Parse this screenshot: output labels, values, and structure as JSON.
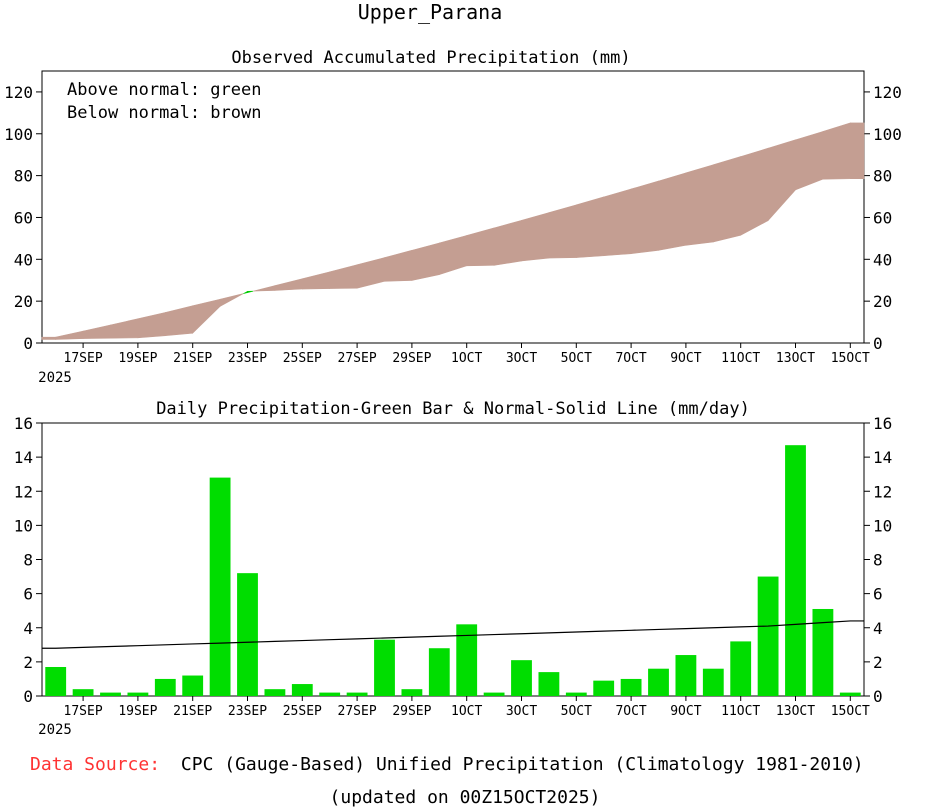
{
  "page_title": "Upper_Parana",
  "chart_data": [
    {
      "type": "area",
      "title": "Observed Accumulated Precipitation (mm)",
      "annotations": [
        "Above normal: green",
        "Below normal: brown"
      ],
      "colors": {
        "above_normal": "#00cc00",
        "below_normal": "#c49e92"
      },
      "x_ticks": [
        "17SEP",
        "19SEP",
        "21SEP",
        "23SEP",
        "25SEP",
        "27SEP",
        "29SEP",
        "1OCT",
        "3OCT",
        "5OCT",
        "7OCT",
        "9OCT",
        "11OCT",
        "13OCT",
        "15OCT"
      ],
      "year_label": "2025",
      "ylim": [
        0,
        130
      ],
      "yticks": [
        0,
        20,
        40,
        60,
        80,
        100,
        120
      ],
      "x": [
        "16SEP",
        "17SEP",
        "18SEP",
        "19SEP",
        "20SEP",
        "21SEP",
        "22SEP",
        "23SEP",
        "24SEP",
        "25SEP",
        "26SEP",
        "27SEP",
        "28SEP",
        "29SEP",
        "30SEP",
        "1OCT",
        "2OCT",
        "3OCT",
        "4OCT",
        "5OCT",
        "6OCT",
        "7OCT",
        "8OCT",
        "9OCT",
        "10OCT",
        "11OCT",
        "12OCT",
        "13OCT",
        "14OCT",
        "15OCT"
      ],
      "series": [
        {
          "name": "Observed",
          "values": [
            1.7,
            2.1,
            2.3,
            2.5,
            3.5,
            4.7,
            17.5,
            24.7,
            25.1,
            25.8,
            26.0,
            26.2,
            29.5,
            29.9,
            32.7,
            36.9,
            37.1,
            39.2,
            40.6,
            40.8,
            41.7,
            42.7,
            44.3,
            46.7,
            48.3,
            51.5,
            58.5,
            73.2,
            78.3,
            78.5
          ]
        },
        {
          "name": "Normal",
          "values": [
            2.8,
            5.7,
            8.6,
            11.6,
            14.6,
            17.8,
            20.9,
            24.1,
            27.4,
            30.7,
            34.0,
            37.4,
            40.8,
            44.3,
            47.8,
            51.4,
            55.0,
            58.6,
            62.3,
            66.0,
            69.8,
            73.6,
            77.4,
            81.3,
            85.2,
            89.1,
            93.1,
            97.1,
            101.1,
            105.2
          ]
        }
      ]
    },
    {
      "type": "bar",
      "title": "Daily Precipitation-Green Bar & Normal-Solid Line (mm/day)",
      "colors": {
        "bar": "#00dd00",
        "line": "#000000"
      },
      "x_ticks": [
        "17SEP",
        "19SEP",
        "21SEP",
        "23SEP",
        "25SEP",
        "27SEP",
        "29SEP",
        "1OCT",
        "3OCT",
        "5OCT",
        "7OCT",
        "9OCT",
        "11OCT",
        "13OCT",
        "15OCT"
      ],
      "year_label": "2025",
      "ylim": [
        0,
        16
      ],
      "yticks": [
        0,
        2,
        4,
        6,
        8,
        10,
        12,
        14,
        16
      ],
      "x": [
        "16SEP",
        "17SEP",
        "18SEP",
        "19SEP",
        "20SEP",
        "21SEP",
        "22SEP",
        "23SEP",
        "24SEP",
        "25SEP",
        "26SEP",
        "27SEP",
        "28SEP",
        "29SEP",
        "30SEP",
        "1OCT",
        "2OCT",
        "3OCT",
        "4OCT",
        "5OCT",
        "6OCT",
        "7OCT",
        "8OCT",
        "9OCT",
        "10OCT",
        "11OCT",
        "12OCT",
        "13OCT",
        "14OCT",
        "15OCT"
      ],
      "series": [
        {
          "name": "Daily Precipitation",
          "values": [
            1.7,
            0.4,
            0.2,
            0.2,
            1.0,
            1.2,
            12.8,
            7.2,
            0.4,
            0.7,
            0.2,
            0.2,
            3.3,
            0.4,
            2.8,
            4.2,
            0.2,
            2.1,
            1.4,
            0.2,
            0.9,
            1.0,
            1.6,
            2.4,
            1.6,
            3.2,
            7.0,
            14.7,
            5.1,
            0.2
          ]
        },
        {
          "name": "Normal",
          "values": [
            2.8,
            2.85,
            2.9,
            2.95,
            3.0,
            3.05,
            3.1,
            3.15,
            3.2,
            3.25,
            3.3,
            3.35,
            3.4,
            3.45,
            3.5,
            3.55,
            3.6,
            3.65,
            3.7,
            3.75,
            3.8,
            3.85,
            3.9,
            3.95,
            4.0,
            4.05,
            4.1,
            4.2,
            4.3,
            4.4
          ]
        }
      ]
    }
  ],
  "footer": {
    "source_label": "Data Source:",
    "source_text": "CPC (Gauge-Based) Unified Precipitation (Climatology 1981-2010)",
    "updated_text": "(updated on 00Z15OCT2025)",
    "source_label_color": "#ff3333"
  }
}
